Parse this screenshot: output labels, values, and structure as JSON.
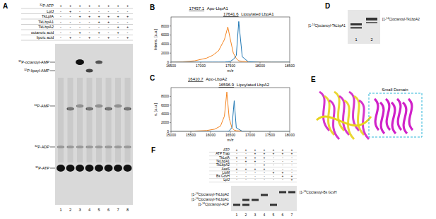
{
  "chart_data": [
    {
      "type": "line",
      "title": "B",
      "x_label": "m/z",
      "y_label": "Intens. [a.u.]",
      "x": [
        16500,
        16700,
        16900,
        17100,
        17200,
        17300,
        17400,
        17457.1,
        17500,
        17550,
        17600,
        17641.6,
        17700,
        17800,
        18000,
        18200,
        18500
      ],
      "series": [
        {
          "color": "#f5841f",
          "values": [
            0,
            100,
            300,
            900,
            1500,
            2500,
            5000,
            7800,
            5000,
            2000,
            800,
            300,
            200,
            100,
            50,
            0,
            0
          ]
        },
        {
          "color": "#1f77b4",
          "values": [
            0,
            0,
            0,
            0,
            0,
            0,
            0,
            100,
            200,
            600,
            1500,
            9000,
            1200,
            100,
            0,
            0,
            0
          ]
        }
      ],
      "xlim": [
        16500,
        18500
      ],
      "xticks": [
        16500,
        17000,
        17500,
        18000,
        18500
      ],
      "ylim": [
        0,
        10000
      ],
      "yticks": [
        0,
        2000,
        4000,
        6000,
        8000
      ],
      "annotations": [
        {
          "value": 17457.1,
          "label": "Apo-LbpA1"
        },
        {
          "value": 17641.6,
          "label": "Lipoylated LbpA1"
        }
      ]
    },
    {
      "type": "line",
      "title": "C",
      "x_label": "m/z",
      "y_label": "s. [a.u.]",
      "x": [
        15000,
        15500,
        15900,
        16100,
        16250,
        16350,
        16410.7,
        16470,
        16540,
        16596.9,
        16650,
        16800,
        17000,
        17500,
        18000
      ],
      "series": [
        {
          "color": "#f5841f",
          "values": [
            0,
            50,
            200,
            500,
            1200,
            3500,
            9000,
            3000,
            800,
            300,
            150,
            80,
            30,
            0,
            0
          ]
        },
        {
          "color": "#1f77b4",
          "values": [
            0,
            0,
            0,
            0,
            0,
            0,
            0,
            100,
            900,
            7000,
            800,
            50,
            0,
            0,
            0
          ]
        }
      ],
      "xlim": [
        15000,
        18000
      ],
      "xticks": [
        15000,
        15500,
        16000,
        16500,
        17000,
        17500,
        18000
      ],
      "ylim": [
        0,
        10000
      ],
      "yticks": [
        0,
        2000,
        4000,
        6000,
        8000
      ],
      "annotations": [
        {
          "value": 16410.7,
          "label": "Apo-LbpA2"
        },
        {
          "value": 16596.9,
          "label": "Lipoylated LbpA2"
        }
      ]
    }
  ],
  "panels": {
    "A": {
      "letter": "A",
      "rows": [
        {
          "label": "32P-ATP",
          "cells": [
            "+",
            "+",
            "+",
            "+",
            "+",
            "+",
            "+",
            "+"
          ]
        },
        {
          "label": "LplJ",
          "cells": [
            "-",
            "+",
            "-",
            "-",
            "-",
            "-",
            "-",
            "-"
          ]
        },
        {
          "label": "TkLplA",
          "cells": [
            "-",
            "-",
            "+",
            "+",
            "+",
            "+",
            "+",
            "+"
          ]
        },
        {
          "label": "TkLbpA1",
          "cells": [
            "-",
            "-",
            "-",
            "-",
            "+",
            "+",
            "-",
            "-"
          ]
        },
        {
          "label": "TkLbpA2",
          "cells": [
            "-",
            "-",
            "-",
            "-",
            "-",
            "-",
            "+",
            "+"
          ]
        },
        {
          "label": "octanoic acid",
          "cells": [
            "-",
            "-",
            "+",
            "-",
            "+",
            "-",
            "+",
            "-"
          ]
        },
        {
          "label": "lipoic acid",
          "cells": [
            "-",
            "+",
            "-",
            "+",
            "-",
            "+",
            "-",
            "+"
          ]
        }
      ],
      "bands": [
        "32P-octanoyl-AMP",
        "32P-lipoyl-AMP",
        "32P-AMP",
        "32P-ADP",
        "32P-ATP"
      ],
      "lanes": [
        "1",
        "2",
        "3",
        "4",
        "5",
        "6",
        "7",
        "8"
      ]
    },
    "D": {
      "letter": "D",
      "labels": [
        "[1-14C]octanoyl-TkLbpA1",
        "[1-14C]octanoyl-TkLbpA2"
      ],
      "lanes": [
        "1",
        "2"
      ]
    },
    "E": {
      "letter": "E",
      "label": "Small Domain"
    },
    "F": {
      "letter": "F",
      "rows": [
        {
          "label": "ATP",
          "cells": [
            "+",
            "+",
            "+",
            "+",
            "+",
            "+",
            "+"
          ]
        },
        {
          "label": "ATP Trap",
          "cells": [
            "-",
            "-",
            "+",
            "+",
            "+",
            "+",
            "+"
          ]
        },
        {
          "label": "TkLplA",
          "cells": [
            "+",
            "+",
            "+",
            "+",
            "-",
            "-",
            "-"
          ]
        },
        {
          "label": "TkLbpA1",
          "cells": [
            "-",
            "+",
            "+",
            "-",
            "-",
            "-",
            "-"
          ]
        },
        {
          "label": "TkLbpA2",
          "cells": [
            "-",
            "-",
            "-",
            "+",
            "-",
            "-",
            "-"
          ]
        },
        {
          "label": "AasS",
          "cells": [
            "+",
            "+",
            "+",
            "+",
            "-",
            "-",
            "-"
          ]
        },
        {
          "label": "LipM",
          "cells": [
            "-",
            "-",
            "-",
            "-",
            "+",
            "+",
            "-"
          ]
        },
        {
          "label": "Bs GcvH",
          "cells": [
            "-",
            "-",
            "-",
            "-",
            "-",
            "+",
            "+"
          ]
        },
        {
          "label": "LplJ",
          "cells": [
            "-",
            "-",
            "-",
            "-",
            "-",
            "-",
            "+"
          ]
        }
      ],
      "left_labels": [
        "[1-14C]octanoyl-TkLbpA2",
        "[1-14C]octanoyl-TkLbpA1",
        "[1-14C]octanoyl-ACP"
      ],
      "right_label": "[1-14C]octanoyl-Bs GcvH",
      "lanes": [
        "1",
        "2",
        "3",
        "4",
        "5",
        "6",
        "7"
      ]
    }
  }
}
